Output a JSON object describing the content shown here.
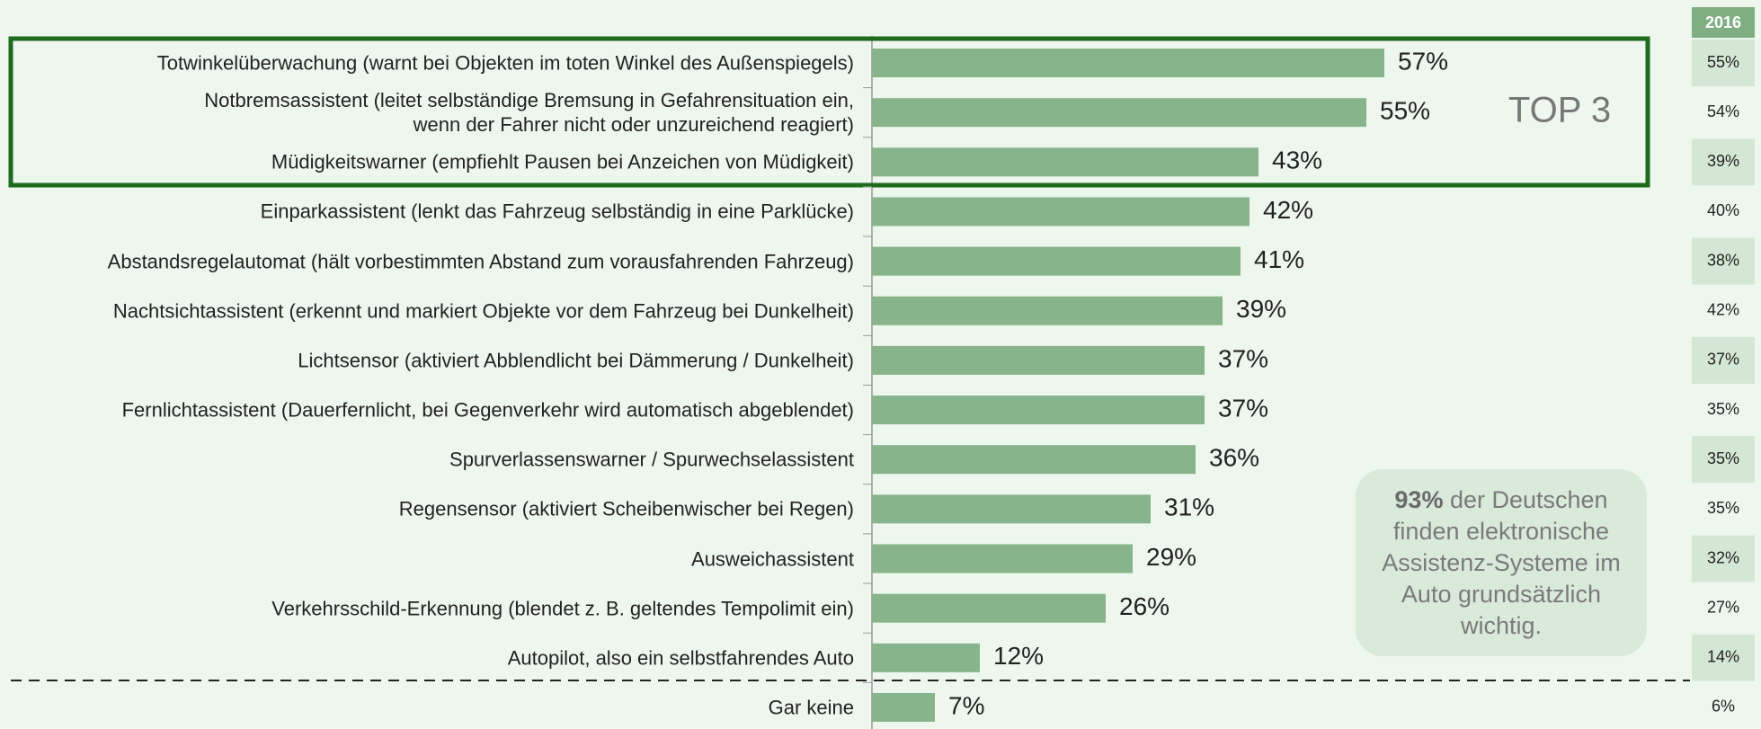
{
  "chart_data": {
    "type": "bar",
    "orientation": "horizontal",
    "categories": [
      "Totwinkelüberwachung (warnt bei Objekten im toten Winkel des Außenspiegels)",
      "Notbremsassistent (leitet selbständige Bremsung in Gefahrensituation ein,\nwenn der Fahrer nicht oder unzureichend reagiert)",
      "Müdigkeitswarner (empfiehlt Pausen bei Anzeichen von Müdigkeit)",
      "Einparkassistent (lenkt das Fahrzeug selbständig in eine Parklücke)",
      "Abstandsregelautomat (hält vorbestimmten Abstand zum vorausfahrenden Fahrzeug)",
      "Nachtsichtassistent (erkennt und markiert Objekte vor dem Fahrzeug bei Dunkelheit)",
      "Lichtsensor (aktiviert Abblendlicht bei Dämmerung / Dunkelheit)",
      "Fernlichtassistent (Dauerfernlicht, bei Gegenverkehr wird automatisch abgeblendet)",
      "Spurverlassenswarner / Spurwechselassistent",
      "Regensensor (aktiviert Scheibenwischer bei Regen)",
      "Ausweichassistent",
      "Verkehrsschild-Erkennung (blendet z. B. geltendes Tempolimit ein)",
      "Autopilot, also ein selbstfahrendes Auto",
      "Gar keine"
    ],
    "values": [
      57,
      55,
      43,
      42,
      41,
      39,
      37,
      37,
      36,
      31,
      29,
      26,
      12,
      7
    ],
    "value_labels": [
      "57%",
      "55%",
      "43%",
      "42%",
      "41%",
      "39%",
      "37%",
      "37%",
      "36%",
      "31%",
      "29%",
      "26%",
      "12%",
      "7%"
    ],
    "color": "#87b48a",
    "highlight_label": "TOP 3",
    "comparison": {
      "label": "2016",
      "values": [
        55,
        54,
        39,
        40,
        38,
        42,
        37,
        35,
        35,
        35,
        32,
        27,
        14,
        6
      ],
      "value_labels": [
        "55%",
        "54%",
        "39%",
        "40%",
        "38%",
        "42%",
        "37%",
        "35%",
        "35%",
        "35%",
        "32%",
        "27%",
        "14%",
        "6%"
      ]
    },
    "annotation": {
      "highlight": "93%",
      "lines": [
        "der Deutschen",
        "finden elektronische",
        "Assistenz-Systeme im",
        "Auto grundsätzlich",
        "wichtig."
      ]
    }
  }
}
